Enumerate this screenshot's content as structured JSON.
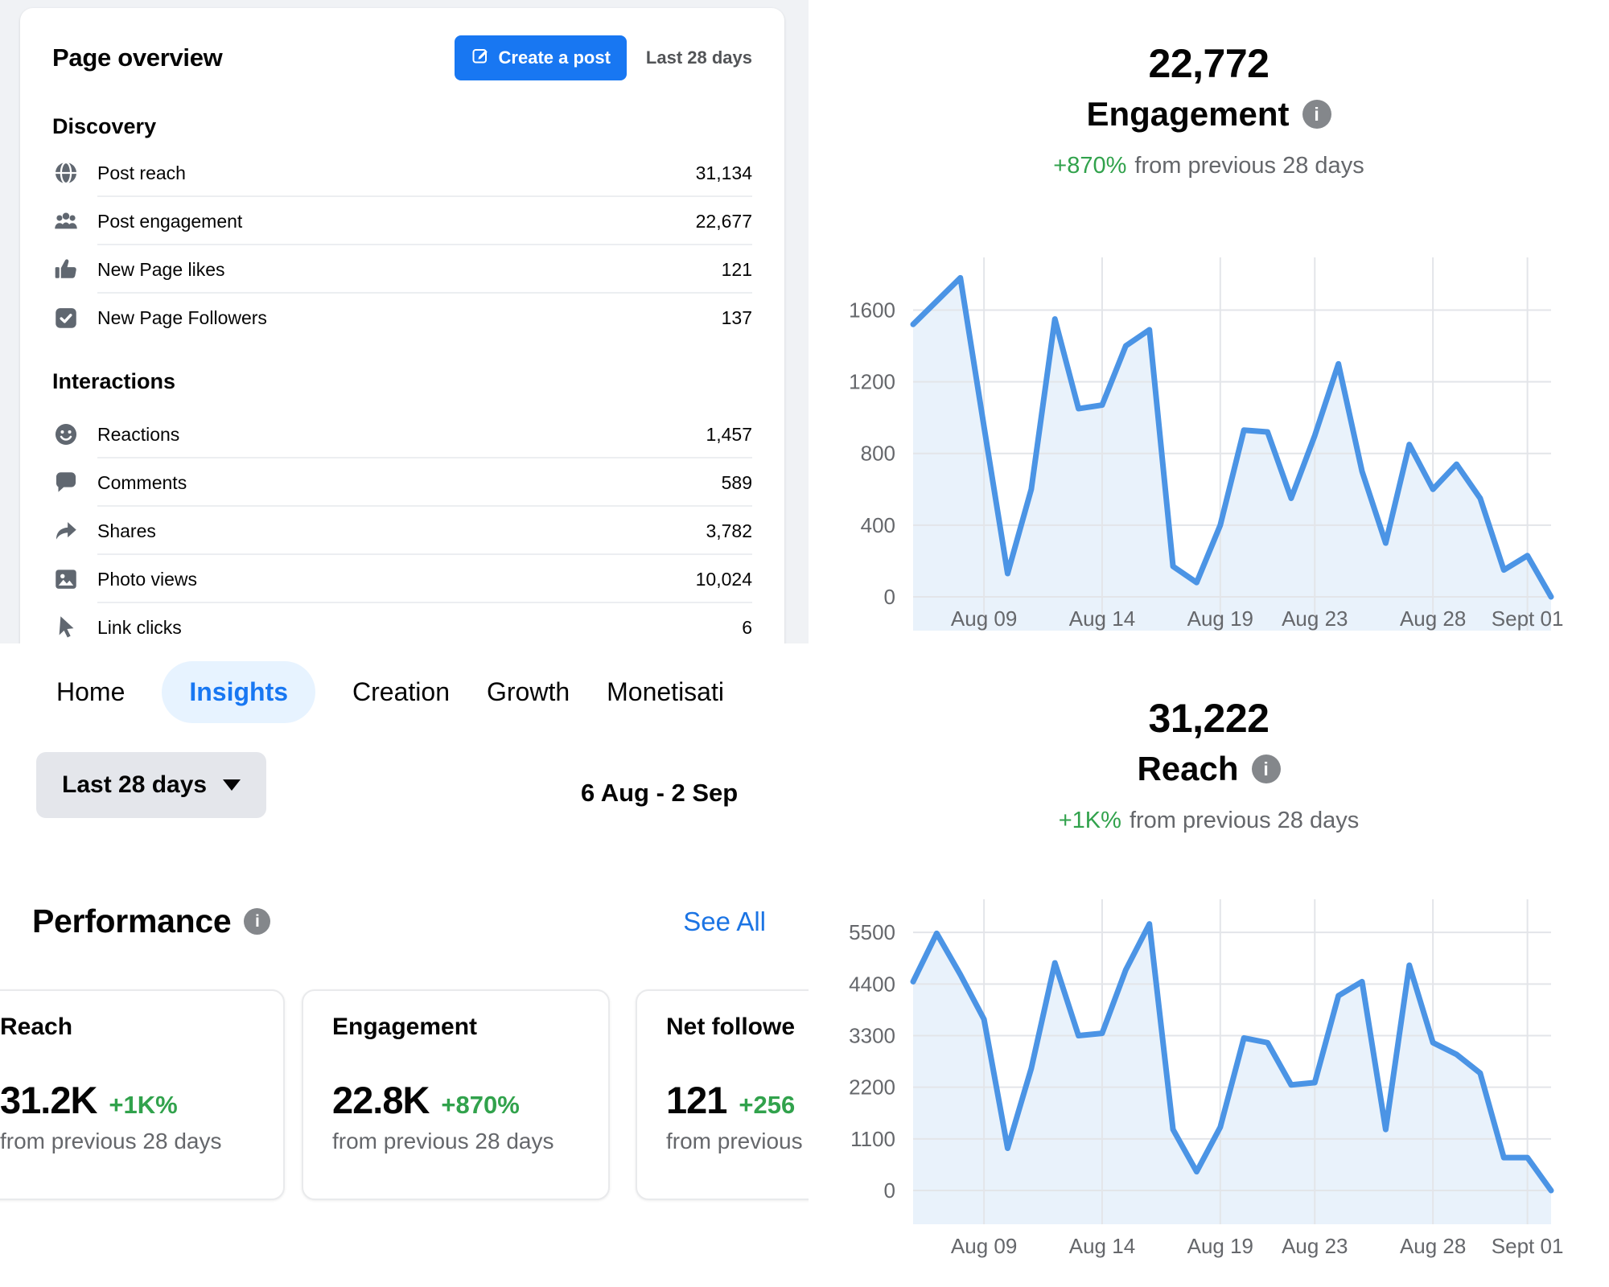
{
  "page_overview": {
    "title": "Page overview",
    "create_post_label": "Create a post",
    "range_label": "Last 28 days",
    "sections": [
      {
        "heading": "Discovery",
        "rows": [
          {
            "icon": "globe-icon",
            "label": "Post reach",
            "value": "31,134"
          },
          {
            "icon": "people-icon",
            "label": "Post engagement",
            "value": "22,677"
          },
          {
            "icon": "thumbs-up-icon",
            "label": "New Page likes",
            "value": "121"
          },
          {
            "icon": "follower-check-icon",
            "label": "New Page Followers",
            "value": "137"
          }
        ]
      },
      {
        "heading": "Interactions",
        "rows": [
          {
            "icon": "smiley-icon",
            "label": "Reactions",
            "value": "1,457"
          },
          {
            "icon": "comment-icon",
            "label": "Comments",
            "value": "589"
          },
          {
            "icon": "share-icon",
            "label": "Shares",
            "value": "3,782"
          },
          {
            "icon": "photo-icon",
            "label": "Photo views",
            "value": "10,024"
          },
          {
            "icon": "cursor-icon",
            "label": "Link clicks",
            "value": "6"
          }
        ]
      }
    ]
  },
  "insights_nav": {
    "tabs": [
      {
        "label": "Home",
        "active": false
      },
      {
        "label": "Insights",
        "active": true
      },
      {
        "label": "Creation",
        "active": false
      },
      {
        "label": "Growth",
        "active": false
      },
      {
        "label": "Monetisati",
        "active": false
      }
    ],
    "range_button": "Last 28 days",
    "date_range": "6 Aug - 2 Sep"
  },
  "performance": {
    "title": "Performance",
    "see_all": "See All",
    "cards": [
      {
        "title": "Reach",
        "value": "31.2K",
        "delta": "+1K%",
        "caption": "from previous 28 days"
      },
      {
        "title": "Engagement",
        "value": "22.8K",
        "delta": "+870%",
        "caption": "from previous 28 days"
      },
      {
        "title": "Net followe",
        "value": "121",
        "delta": "+256",
        "caption": "from previous"
      }
    ]
  },
  "colors": {
    "accent_blue": "#1877f2",
    "link_blue": "#1b74e4",
    "green": "#31a24c",
    "line_blue": "#4b94e5",
    "fill_blue": "#e9f2fb",
    "page_bg": "#f0f2f5"
  },
  "chart_data": [
    {
      "type": "area",
      "title": "22,772",
      "metric": "Engagement",
      "delta": "+870%",
      "delta_caption": "from previous 28 days",
      "x_range": "6 Aug - 2 Sep",
      "n_points": 28,
      "x_tick_labels": [
        "Aug 09",
        "Aug 14",
        "Aug 19",
        "Aug 23",
        "Aug 28",
        "Sept 01"
      ],
      "x_tick_indices": [
        3,
        8,
        13,
        17,
        22,
        26
      ],
      "y_ticks": [
        0,
        400,
        800,
        1200,
        1600
      ],
      "ylim": [
        0,
        1840
      ],
      "grid": true,
      "values": [
        1520,
        1650,
        1780,
        950,
        130,
        600,
        1550,
        1050,
        1070,
        1400,
        1490,
        170,
        80,
        400,
        930,
        920,
        550,
        900,
        1300,
        700,
        300,
        850,
        600,
        740,
        550,
        150,
        230,
        0
      ],
      "line_color": "#4b94e5",
      "fill_color": "#e9f2fb"
    },
    {
      "type": "area",
      "title": "31,222",
      "metric": "Reach",
      "delta": "+1K%",
      "delta_caption": "from previous 28 days",
      "x_range": "6 Aug - 2 Sep",
      "n_points": 28,
      "x_tick_labels": [
        "Aug 09",
        "Aug 14",
        "Aug 19",
        "Aug 23",
        "Aug 28",
        "Sept 01"
      ],
      "x_tick_indices": [
        3,
        8,
        13,
        17,
        22,
        26
      ],
      "y_ticks": [
        0,
        1100,
        2200,
        3300,
        4400,
        5500
      ],
      "ylim": [
        0,
        6000
      ],
      "grid": true,
      "values": [
        4450,
        5480,
        4600,
        3650,
        900,
        2600,
        4850,
        3300,
        3350,
        4700,
        5680,
        1300,
        400,
        1350,
        3250,
        3150,
        2250,
        2300,
        4150,
        4450,
        1300,
        4800,
        3150,
        2900,
        2500,
        700,
        700,
        0
      ],
      "line_color": "#4b94e5",
      "fill_color": "#e9f2fb"
    }
  ]
}
